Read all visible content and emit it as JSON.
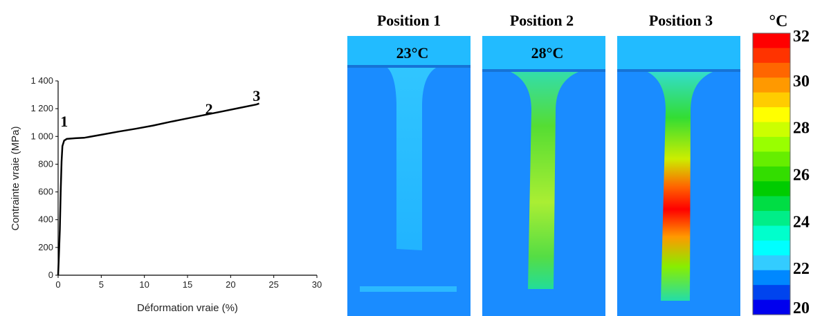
{
  "chart_data": [
    {
      "type": "line",
      "title": "",
      "xlabel": "Déformation vraie (%)",
      "ylabel": "Contrainte vraie (MPa)",
      "xlim": [
        0,
        30
      ],
      "ylim": [
        0,
        1400
      ],
      "x_ticks": [
        "0",
        "5",
        "10",
        "15",
        "20",
        "25",
        "30"
      ],
      "y_ticks": [
        "0",
        "200",
        "400",
        "600",
        "800",
        "1 000",
        "1 200",
        "1 400"
      ],
      "series": [
        {
          "points": [
            [
              0,
              0
            ],
            [
              0.1,
              150
            ],
            [
              0.2,
              330
            ],
            [
              0.3,
              600
            ],
            [
              0.4,
              820
            ],
            [
              0.5,
              930
            ],
            [
              0.7,
              970
            ],
            [
              1.0,
              982
            ],
            [
              2.0,
              987
            ],
            [
              3.0,
              990
            ],
            [
              5.0,
              1012
            ],
            [
              7.0,
              1035
            ],
            [
              9.0,
              1055
            ],
            [
              11.0,
              1078
            ],
            [
              13.0,
              1105
            ],
            [
              15.0,
              1130
            ],
            [
              17.0,
              1155
            ],
            [
              19.0,
              1180
            ],
            [
              21.0,
              1205
            ],
            [
              23.0,
              1230
            ],
            [
              23.3,
              1237
            ]
          ]
        }
      ],
      "annotations": [
        {
          "text": "1",
          "x": 0.7,
          "y": 1070
        },
        {
          "text": "2",
          "x": 17.5,
          "y": 1160
        },
        {
          "text": "3",
          "x": 23.0,
          "y": 1255
        }
      ]
    },
    {
      "type": "heatmap",
      "unit": "°C",
      "colorbar": {
        "tick_labels": [
          "32",
          "30",
          "28",
          "26",
          "24",
          "22",
          "20"
        ],
        "min": 20,
        "max": 32,
        "colors": [
          "#ff0000",
          "#ff3300",
          "#ff6600",
          "#ff9900",
          "#ffcc00",
          "#ffff00",
          "#ccff00",
          "#99ff00",
          "#66ee00",
          "#33dd00",
          "#00cc00",
          "#00dd44",
          "#00ee88",
          "#00ffcc",
          "#00ffff",
          "#33ccff",
          "#0088ff",
          "#0044ee",
          "#0000ee"
        ]
      },
      "panels": [
        {
          "title": "Position 1",
          "temp_label": "23°C"
        },
        {
          "title": "Position 2",
          "temp_label": "28°C"
        },
        {
          "title": "Position 3",
          "temp_label": ""
        }
      ]
    }
  ]
}
